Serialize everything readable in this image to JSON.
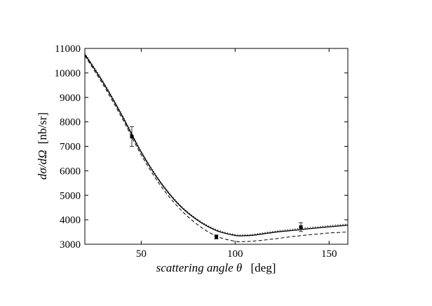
{
  "chart_data": {
    "type": "line",
    "title": "",
    "xlabel": {
      "italic": "scattering angle",
      "symbol": "θ",
      "unit": "[deg]"
    },
    "ylabel": {
      "italic": "dσ/dΩ",
      "unit": "[nb/sr]"
    },
    "xlim": [
      20,
      160
    ],
    "ylim": [
      3000,
      11000
    ],
    "xticks": [
      50,
      100,
      150
    ],
    "yticks": [
      3000,
      4000,
      5000,
      6000,
      7000,
      8000,
      9000,
      10000,
      11000
    ],
    "grid": false,
    "legend": "none",
    "series": [
      {
        "style": "solid",
        "x": [
          20,
          30,
          40,
          50,
          60,
          70,
          80,
          90,
          100,
          105,
          110,
          120,
          130,
          140,
          150,
          160
        ],
        "y": [
          10760,
          9570,
          8220,
          6760,
          5550,
          4620,
          3980,
          3560,
          3360,
          3350,
          3370,
          3480,
          3560,
          3640,
          3710,
          3780
        ]
      },
      {
        "style": "dotted",
        "x": [
          20,
          30,
          40,
          50,
          60,
          70,
          80,
          90,
          100,
          105,
          110,
          120,
          130,
          140,
          150,
          160
        ],
        "y": [
          10800,
          9620,
          8270,
          6800,
          5590,
          4660,
          4020,
          3600,
          3400,
          3385,
          3410,
          3520,
          3610,
          3690,
          3760,
          3830
        ]
      },
      {
        "style": "dashed",
        "x": [
          20,
          30,
          40,
          50,
          60,
          70,
          80,
          90,
          100,
          105,
          110,
          120,
          130,
          140,
          150,
          160
        ],
        "y": [
          10700,
          9480,
          8120,
          6650,
          5430,
          4490,
          3800,
          3330,
          3120,
          3110,
          3130,
          3210,
          3310,
          3390,
          3460,
          3500
        ]
      }
    ],
    "points": [
      {
        "x": 45,
        "y": 7400,
        "err": 400
      },
      {
        "x": 90,
        "y": 3300,
        "err": 80
      },
      {
        "x": 135,
        "y": 3700,
        "err": 180
      }
    ],
    "style": {
      "line_color": "#000000",
      "point_color": "#000000"
    }
  }
}
